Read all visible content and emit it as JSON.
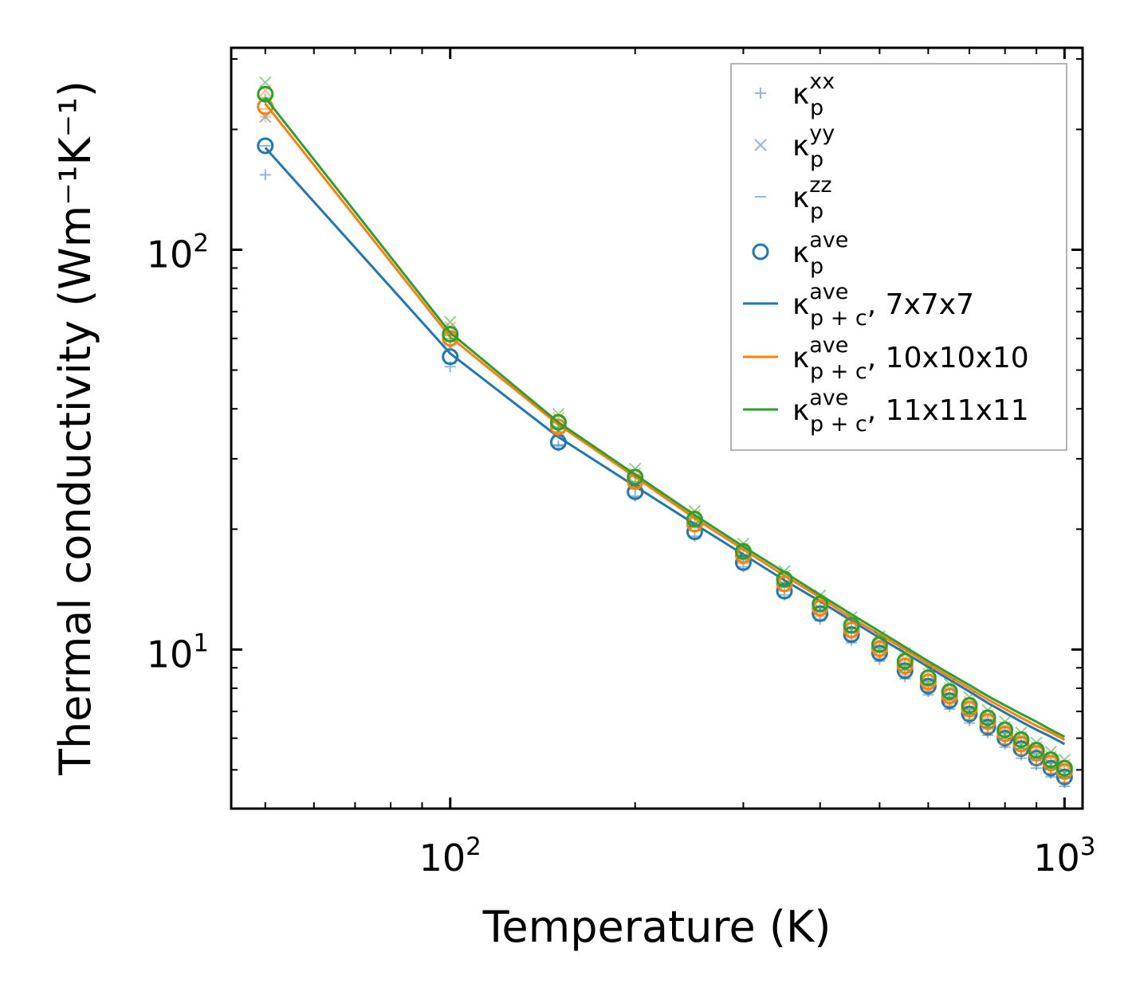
{
  "chart_data": {
    "type": "line",
    "xscale": "log",
    "yscale": "log",
    "xlim": [
      44,
      1070
    ],
    "ylim": [
      4.0,
      320
    ],
    "xlabel": "Temperature (K)",
    "ylabel": "Thermal conductivity (Wm⁻¹K⁻¹)",
    "x_ticks": [
      {
        "base": "10",
        "exp": "2"
      },
      {
        "base": "10",
        "exp": "3"
      }
    ],
    "y_ticks": [
      {
        "base": "10",
        "exp": "1"
      },
      {
        "base": "10",
        "exp": "2"
      }
    ],
    "legend_position": "top-right",
    "colors": {
      "blue": "#1f77b4",
      "orange": "#ff7f0e",
      "green": "#2ca02c"
    },
    "x": [
      50,
      100,
      150,
      200,
      250,
      300,
      350,
      400,
      450,
      500,
      550,
      600,
      650,
      700,
      750,
      800,
      850,
      900,
      950,
      1000
    ],
    "groups": [
      {
        "color": "#1f77b4",
        "kxx": [
          154,
          51,
          32.3,
          24.2,
          19.2,
          16.1,
          13.7,
          11.9,
          10.55,
          9.45,
          8.55,
          7.85,
          7.2,
          6.65,
          6.2,
          5.8,
          5.45,
          5.15,
          4.9,
          4.65
        ],
        "kyy": [
          215,
          57,
          35.3,
          25.9,
          20.5,
          17.0,
          14.5,
          12.6,
          11.15,
          9.95,
          9.0,
          8.2,
          7.55,
          7.0,
          6.5,
          6.1,
          5.75,
          5.4,
          5.15,
          4.9
        ],
        "kzz": [
          182,
          52,
          32.5,
          24.0,
          19.0,
          15.9,
          13.5,
          11.8,
          10.4,
          9.35,
          8.45,
          7.7,
          7.1,
          6.55,
          6.1,
          5.7,
          5.35,
          5.05,
          4.8,
          4.55
        ],
        "kave": [
          182,
          54,
          33.0,
          24.8,
          19.7,
          16.5,
          14.0,
          12.3,
          10.9,
          9.8,
          8.85,
          8.1,
          7.45,
          6.9,
          6.4,
          6.0,
          5.65,
          5.35,
          5.05,
          4.8
        ],
        "kpc": [
          180,
          55,
          34.0,
          25.6,
          20.6,
          17.3,
          14.9,
          13.2,
          11.8,
          10.7,
          9.8,
          9.05,
          8.4,
          7.85,
          7.35,
          6.95,
          6.6,
          6.3,
          6.05,
          5.8
        ]
      },
      {
        "color": "#ff7f0e",
        "kxx": [
          215,
          58,
          35.0,
          25.6,
          20.2,
          16.8,
          14.3,
          12.4,
          11.0,
          9.85,
          8.9,
          8.1,
          7.45,
          6.9,
          6.4,
          6.0,
          5.65,
          5.35,
          5.05,
          4.8
        ],
        "kyy": [
          250,
          64,
          38.0,
          27.6,
          21.7,
          17.9,
          15.3,
          13.3,
          11.75,
          10.5,
          9.5,
          8.7,
          8.0,
          7.4,
          6.85,
          6.4,
          6.05,
          5.7,
          5.4,
          5.15
        ],
        "kzz": [
          225,
          59,
          35.0,
          25.3,
          19.8,
          16.4,
          14.0,
          12.1,
          10.7,
          9.55,
          8.65,
          7.9,
          7.25,
          6.7,
          6.2,
          5.8,
          5.45,
          5.15,
          4.9,
          4.65
        ],
        "kave": [
          228,
          60,
          36.0,
          26.3,
          20.6,
          17.2,
          14.6,
          12.7,
          11.2,
          10.05,
          9.1,
          8.3,
          7.65,
          7.1,
          6.6,
          6.15,
          5.8,
          5.5,
          5.2,
          4.95
        ],
        "kpc": [
          232,
          60.5,
          36.5,
          27.0,
          21.3,
          17.8,
          15.3,
          13.5,
          12.0,
          10.9,
          10.0,
          9.2,
          8.55,
          8.0,
          7.5,
          7.1,
          6.75,
          6.45,
          6.2,
          5.95
        ]
      },
      {
        "color": "#2ca02c",
        "kxx": [
          238,
          60,
          36.0,
          26.3,
          20.8,
          17.2,
          14.7,
          12.8,
          11.3,
          10.1,
          9.15,
          8.35,
          7.7,
          7.1,
          6.6,
          6.2,
          5.85,
          5.5,
          5.2,
          4.95
        ],
        "kyy": [
          262,
          66,
          38.8,
          28.3,
          22.2,
          18.4,
          15.7,
          13.65,
          12.05,
          10.8,
          9.8,
          8.95,
          8.2,
          7.6,
          7.05,
          6.6,
          6.2,
          5.85,
          5.55,
          5.3
        ],
        "kzz": [
          240,
          61,
          35.8,
          26.0,
          20.4,
          16.9,
          14.4,
          12.5,
          11.05,
          9.9,
          8.9,
          8.15,
          7.5,
          6.9,
          6.4,
          6.0,
          5.65,
          5.35,
          5.05,
          4.8
        ],
        "kave": [
          245,
          61.5,
          37.0,
          27.0,
          21.2,
          17.6,
          15.0,
          13.0,
          11.5,
          10.3,
          9.35,
          8.5,
          7.85,
          7.25,
          6.75,
          6.3,
          5.95,
          5.6,
          5.3,
          5.05
        ],
        "kpc": [
          240,
          62,
          37.0,
          27.4,
          21.7,
          18.1,
          15.6,
          13.7,
          12.25,
          11.1,
          10.15,
          9.35,
          8.7,
          8.15,
          7.65,
          7.25,
          6.9,
          6.6,
          6.3,
          6.05
        ]
      }
    ],
    "legend": [
      {
        "marker": "plus",
        "color": "#1f77b4",
        "sym": "κ",
        "sup": "xx",
        "sub": "p",
        "text": ""
      },
      {
        "marker": "x",
        "color": "#1f77b4",
        "sym": "κ",
        "sup": "yy",
        "sub": "p",
        "text": ""
      },
      {
        "marker": "hline",
        "color": "#1f77b4",
        "sym": "κ",
        "sup": "zz",
        "sub": "p",
        "text": ""
      },
      {
        "marker": "circle",
        "color": "#1f77b4",
        "sym": "κ",
        "sup": "ave",
        "sub": "p",
        "text": ""
      },
      {
        "marker": "line",
        "color": "#1f77b4",
        "sym": "κ",
        "sup": "ave",
        "sub": "p + c",
        "text": ", 7x7x7"
      },
      {
        "marker": "line",
        "color": "#ff7f0e",
        "sym": "κ",
        "sup": "ave",
        "sub": "p + c",
        "text": ", 10x10x10"
      },
      {
        "marker": "line",
        "color": "#2ca02c",
        "sym": "κ",
        "sup": "ave",
        "sub": "p + c",
        "text": ", 11x11x11"
      }
    ]
  }
}
